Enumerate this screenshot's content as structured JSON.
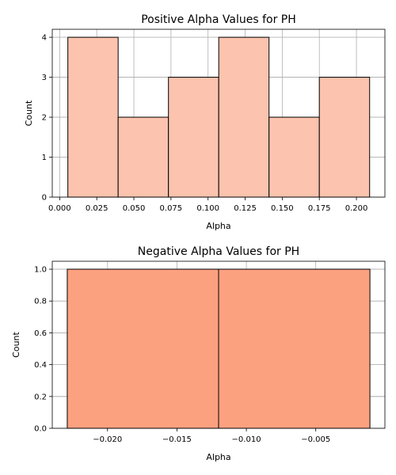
{
  "chart_data": [
    {
      "type": "bar",
      "title": "Positive Alpha Values for PH",
      "xlabel": "Alpha",
      "ylabel": "Count",
      "bin_edges": [
        0.0055,
        0.0394,
        0.0733,
        0.1072,
        0.1411,
        0.175,
        0.2089
      ],
      "values": [
        4,
        2,
        3,
        4,
        2,
        3
      ],
      "xlim": [
        -0.005,
        0.2192
      ],
      "ylim": [
        0,
        4.2
      ],
      "xticks": [
        0.0,
        0.025,
        0.05,
        0.075,
        0.1,
        0.125,
        0.15,
        0.175,
        0.2
      ],
      "xtick_labels": [
        "0.000",
        "0.025",
        "0.050",
        "0.075",
        "0.100",
        "0.125",
        "0.150",
        "0.175",
        "0.200"
      ],
      "yticks": [
        0,
        1,
        2,
        3,
        4
      ],
      "ytick_labels": [
        "0",
        "1",
        "2",
        "3",
        "4"
      ],
      "grid": true,
      "bar_color": "#fcc3ae",
      "edge_color": "#000000"
    },
    {
      "type": "bar",
      "title": "Negative Alpha Values for PH",
      "xlabel": "Alpha",
      "ylabel": "Count",
      "bin_edges": [
        -0.0229,
        -0.012,
        -0.0011
      ],
      "values": [
        1,
        1
      ],
      "xlim": [
        -0.02398,
        -2e-05
      ],
      "ylim": [
        0,
        1.05
      ],
      "xticks": [
        -0.02,
        -0.015,
        -0.01,
        -0.005
      ],
      "xtick_labels": [
        "−0.020",
        "−0.015",
        "−0.010",
        "−0.005"
      ],
      "yticks": [
        0,
        0.2,
        0.4,
        0.6,
        0.8,
        1.0
      ],
      "ytick_labels": [
        "0.0",
        "0.2",
        "0.4",
        "0.6",
        "0.8",
        "1.0"
      ],
      "grid": true,
      "bar_color": "#fca180",
      "edge_color": "#000000"
    }
  ]
}
